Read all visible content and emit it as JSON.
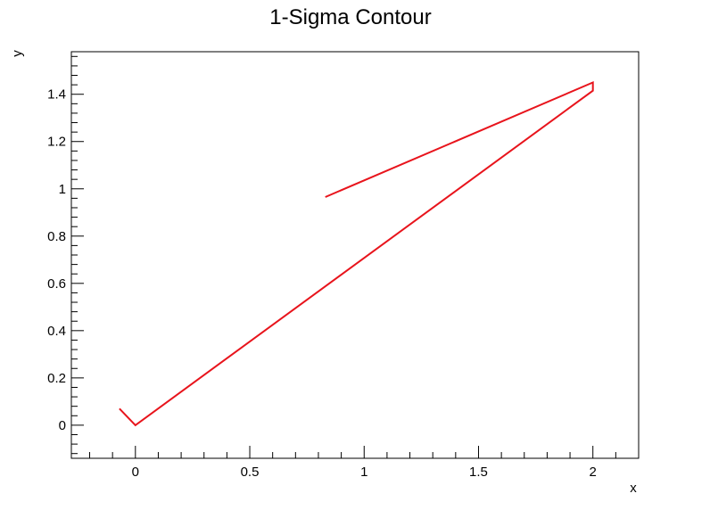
{
  "chart_data": {
    "type": "line",
    "title": "1-Sigma Contour",
    "xlabel": "x",
    "ylabel": "y",
    "xlim": [
      -0.28,
      2.2
    ],
    "ylim": [
      -0.14,
      1.58
    ],
    "grid": false,
    "x_ticks": [
      0,
      0.5,
      1,
      1.5,
      2
    ],
    "x_tick_labels": [
      "0",
      "0.5",
      "1",
      "1.5",
      "2"
    ],
    "y_ticks": [
      0,
      0.2,
      0.4,
      0.6,
      0.8,
      1,
      1.2,
      1.4
    ],
    "y_tick_labels": [
      "0",
      "0.2",
      "0.4",
      "0.6",
      "0.8",
      "1",
      "1.2",
      "1.4"
    ],
    "series": [
      {
        "color": "#e8141c",
        "x": [
          0.83,
          2.0,
          2.0,
          0.0,
          -0.07
        ],
        "y": [
          0.965,
          1.45,
          1.415,
          0.0,
          0.07
        ]
      }
    ]
  }
}
